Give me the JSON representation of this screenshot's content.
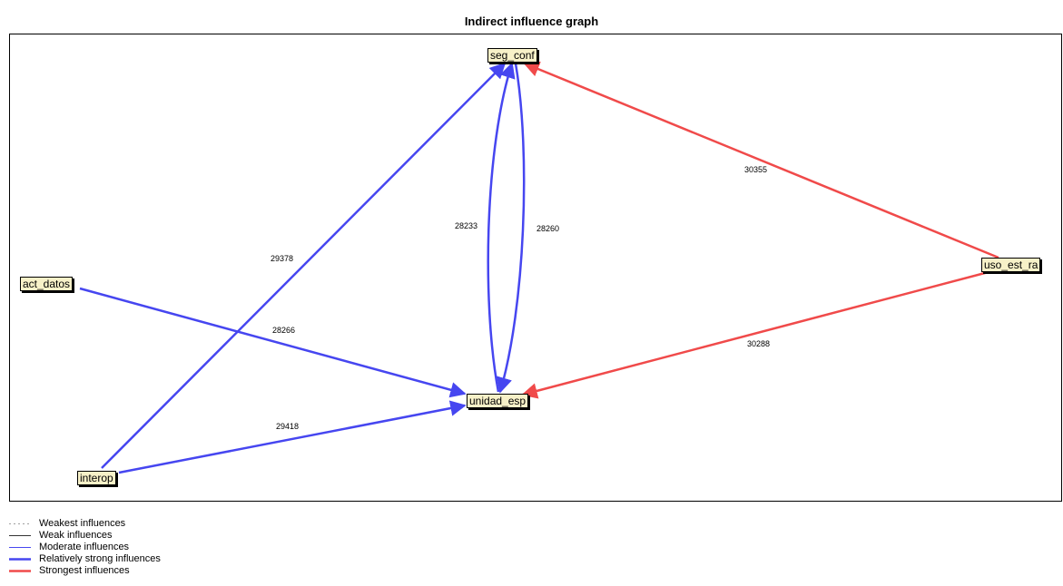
{
  "title": "Indirect influence graph",
  "colors": {
    "blue": "#4646f0",
    "red": "#f04a4a",
    "node_fill": "#f7f1c8"
  },
  "nodes": {
    "seg_conf": "seg_conf",
    "act_datos": "act_datos",
    "uso_est_ra": "uso_est_ra",
    "unidad_esp": "unidad_esp",
    "interop": "interop"
  },
  "edges": [
    {
      "from": "interop",
      "to": "seg_conf",
      "value": "29378",
      "strength": "relatively-strong"
    },
    {
      "from": "act_datos",
      "to": "unidad_esp",
      "value": "28266",
      "strength": "relatively-strong"
    },
    {
      "from": "interop",
      "to": "unidad_esp",
      "value": "29418",
      "strength": "relatively-strong"
    },
    {
      "from": "unidad_esp",
      "to": "seg_conf",
      "value": "28233",
      "strength": "relatively-strong"
    },
    {
      "from": "seg_conf",
      "to": "unidad_esp",
      "value": "28260",
      "strength": "relatively-strong"
    },
    {
      "from": "uso_est_ra",
      "to": "seg_conf",
      "value": "30355",
      "strength": "strongest"
    },
    {
      "from": "uso_est_ra",
      "to": "unidad_esp",
      "value": "30288",
      "strength": "strongest"
    }
  ],
  "legend": [
    {
      "label": "Weakest influences",
      "style": "dotted-gray"
    },
    {
      "label": "Weak influences",
      "style": "thin-black"
    },
    {
      "label": "Moderate influences",
      "style": "thin-blue"
    },
    {
      "label": "Relatively strong influences",
      "style": "thick-blue"
    },
    {
      "label": "Strongest influences",
      "style": "thick-red"
    }
  ]
}
